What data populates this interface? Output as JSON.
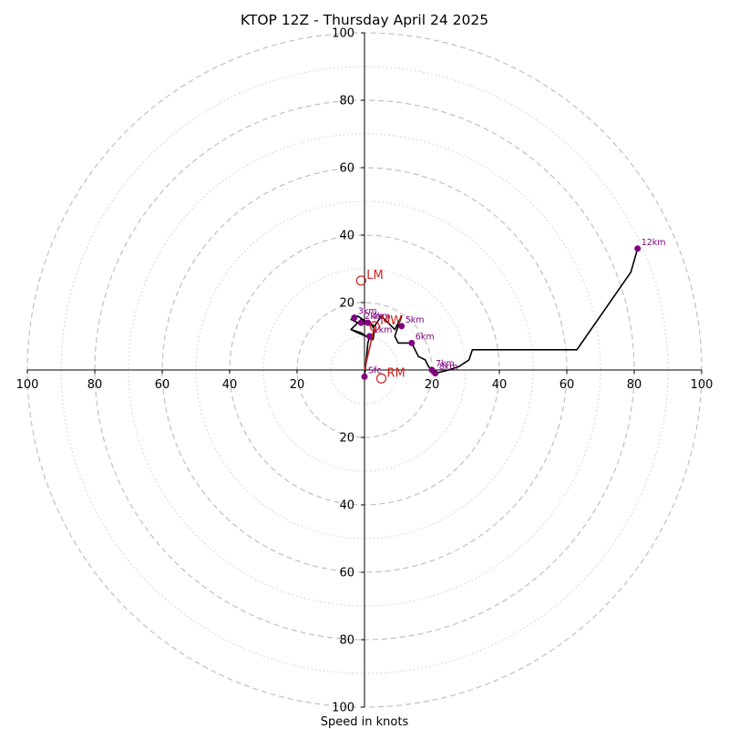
{
  "chart_data": {
    "type": "line",
    "title": "KTOP 12Z - Thursday April 24 2025",
    "xlabel": "Speed in knots",
    "ylabel": "",
    "xlim": [
      -100,
      100
    ],
    "ylim": [
      -100,
      100
    ],
    "ring_major_values": [
      20,
      40,
      60,
      80,
      100
    ],
    "ring_minor_values": [
      10,
      30,
      50,
      70,
      90
    ],
    "tick_labels": [
      "100",
      "80",
      "60",
      "40",
      "20",
      "20",
      "40",
      "60",
      "80",
      "100"
    ],
    "series": [
      {
        "name": "",
        "color": "#000000",
        "points": [
          [
            0,
            -2
          ],
          [
            0.5,
            3
          ],
          [
            1,
            8
          ],
          [
            1.5,
            10
          ],
          [
            2.5,
            9
          ],
          [
            3,
            12
          ],
          [
            1.5,
            14
          ],
          [
            -1,
            15
          ],
          [
            -2,
            14
          ],
          [
            -4,
            12
          ],
          [
            -2,
            11
          ],
          [
            0.5,
            10
          ],
          [
            2,
            9
          ],
          [
            -1,
            11
          ],
          [
            -4,
            12
          ],
          [
            -2,
            14
          ],
          [
            -4,
            15
          ],
          [
            -2,
            16
          ],
          [
            1,
            14
          ],
          [
            3,
            13
          ],
          [
            5,
            16
          ],
          [
            7,
            14
          ],
          [
            9,
            12
          ],
          [
            11,
            16
          ],
          [
            10,
            13
          ],
          [
            9,
            10
          ],
          [
            10,
            8
          ],
          [
            12,
            8
          ],
          [
            14,
            8
          ],
          [
            15,
            6
          ],
          [
            16,
            4
          ],
          [
            18,
            3
          ],
          [
            19,
            1
          ],
          [
            20,
            0
          ],
          [
            21,
            -1
          ],
          [
            25,
            0
          ],
          [
            28,
            1
          ],
          [
            31,
            3
          ],
          [
            32,
            6
          ],
          [
            33,
            6
          ],
          [
            63,
            6
          ],
          [
            79,
            29
          ],
          [
            81,
            36
          ]
        ]
      }
    ],
    "height_markers": [
      {
        "label": "Sfc",
        "u": 0,
        "v": -2
      },
      {
        "label": "1km",
        "u": 1.5,
        "v": 10
      },
      {
        "label": "2km",
        "u": -1,
        "v": 14
      },
      {
        "label": "3km",
        "u": -3,
        "v": 15.5
      },
      {
        "label": "4km",
        "u": 1,
        "v": 14
      },
      {
        "label": "5km",
        "u": 11,
        "v": 13
      },
      {
        "label": "6km",
        "u": 14,
        "v": 8
      },
      {
        "label": "7km",
        "u": 20,
        "v": 0
      },
      {
        "label": "8km",
        "u": 21,
        "v": -1
      },
      {
        "label": "12km",
        "u": 81,
        "v": 36
      }
    ],
    "storm_motion": [
      {
        "label": "LM",
        "u": -1,
        "v": 26.5
      },
      {
        "label": "MW",
        "u": 3,
        "v": 13
      },
      {
        "label": "RM",
        "u": 5,
        "v": -2.5
      }
    ],
    "colors": {
      "hodograph_line": "#000000",
      "height_marker": "#800080",
      "storm_motion": "#cc2222",
      "ring": "#bbbbbb",
      "axis": "#000000"
    }
  }
}
